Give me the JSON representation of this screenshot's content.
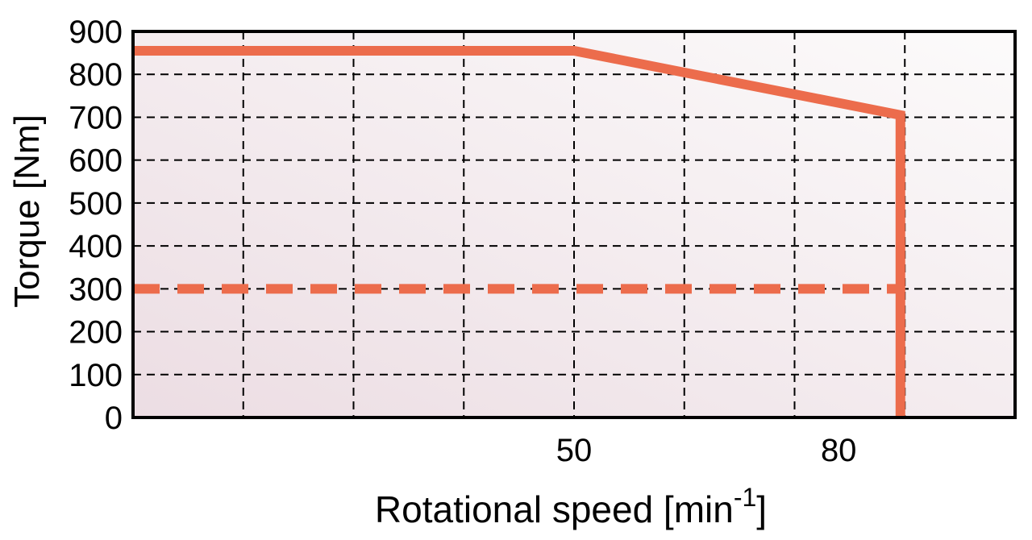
{
  "chart_data": {
    "type": "line",
    "xlabel": "Rotational speed [min",
    "xlabel_sup": "-1",
    "xlabel_close": "]",
    "ylabel": "Torque [Nm]",
    "xlim": [
      0,
      100
    ],
    "ylim": [
      0,
      900
    ],
    "x_ticks": [
      50,
      80
    ],
    "x_tick_labels": [
      "50",
      "80"
    ],
    "y_ticks": [
      0,
      100,
      200,
      300,
      400,
      500,
      600,
      700,
      800,
      900
    ],
    "y_tick_labels": [
      "0",
      "100",
      "200",
      "300",
      "400",
      "500",
      "600",
      "700",
      "800",
      "900"
    ],
    "x_gridlines": [
      12.5,
      25,
      37.5,
      50,
      62.5,
      75,
      87.5
    ],
    "grid": true,
    "series": [
      {
        "style": "solid",
        "x": [
          0,
          50,
          87,
          87
        ],
        "y": [
          855,
          855,
          705,
          0
        ]
      },
      {
        "style": "dashed",
        "x": [
          0,
          87
        ],
        "y": [
          300,
          300
        ]
      }
    ],
    "colors": {
      "line": "#ec6c4c",
      "frame": "#000000",
      "grid": "#000000",
      "bg_light": "#fcfbfb",
      "bg_dark": "#ecdde3"
    }
  }
}
